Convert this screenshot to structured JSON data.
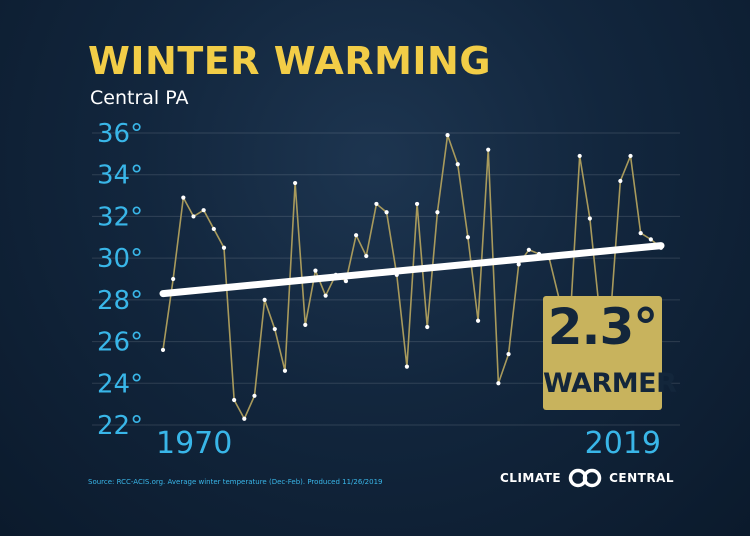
{
  "header": {
    "title": "WINTER WARMING",
    "subtitle": "Central PA"
  },
  "badge": {
    "value": "2.3°",
    "label": "WARMER"
  },
  "footer": {
    "source": "Source: RCC-ACIS.org. Average winter temperature (Dec-Feb). Produced 11/26/2019",
    "brand_left": "CLIMATE",
    "brand_right": "CENTRAL",
    "brand_logo_icon": "climate-central-logo-icon"
  },
  "colors": {
    "title": "#f2cd47",
    "axis_labels": "#39b6e8",
    "data_line": "#a89a5c",
    "trend_line": "#ffffff",
    "badge_bg": "#c8b35d",
    "background": "#12263d"
  },
  "chart_data": {
    "type": "line",
    "title": "WINTER WARMING",
    "subtitle": "Central PA",
    "x_range_labels": [
      "1970",
      "2019"
    ],
    "x": [
      1970,
      1971,
      1972,
      1973,
      1974,
      1975,
      1976,
      1977,
      1978,
      1979,
      1980,
      1981,
      1982,
      1983,
      1984,
      1985,
      1986,
      1987,
      1988,
      1989,
      1990,
      1991,
      1992,
      1993,
      1994,
      1995,
      1996,
      1997,
      1998,
      1999,
      2000,
      2001,
      2002,
      2003,
      2004,
      2005,
      2006,
      2007,
      2008,
      2009,
      2010,
      2011,
      2012,
      2013,
      2014,
      2015,
      2016,
      2017,
      2018,
      2019
    ],
    "series": [
      {
        "values": [
          25.6,
          29.0,
          32.9,
          32.0,
          32.3,
          31.4,
          30.5,
          23.2,
          22.3,
          23.4,
          28.0,
          26.6,
          24.6,
          33.6,
          26.8,
          29.4,
          28.2,
          29.2,
          28.9,
          31.1,
          30.1,
          32.6,
          32.2,
          29.2,
          24.8,
          32.6,
          26.7,
          32.2,
          35.9,
          34.5,
          31.0,
          27.0,
          35.2,
          24.0,
          25.4,
          29.7,
          30.4,
          30.2,
          30.0,
          28.0,
          26.5,
          34.9,
          31.9,
          27.2,
          27.0,
          33.7,
          34.9,
          31.2,
          30.9,
          30.5
        ]
      }
    ],
    "trend": {
      "start": 28.3,
      "end": 30.6,
      "change": 2.3
    },
    "y_ticks": [
      22,
      24,
      26,
      28,
      30,
      32,
      34,
      36
    ],
    "y_tick_labels": [
      "22°",
      "24°",
      "26°",
      "28°",
      "30°",
      "32°",
      "34°",
      "36°"
    ],
    "ylim": [
      22,
      36
    ],
    "xlim": [
      1970,
      2019
    ],
    "grid": true
  }
}
